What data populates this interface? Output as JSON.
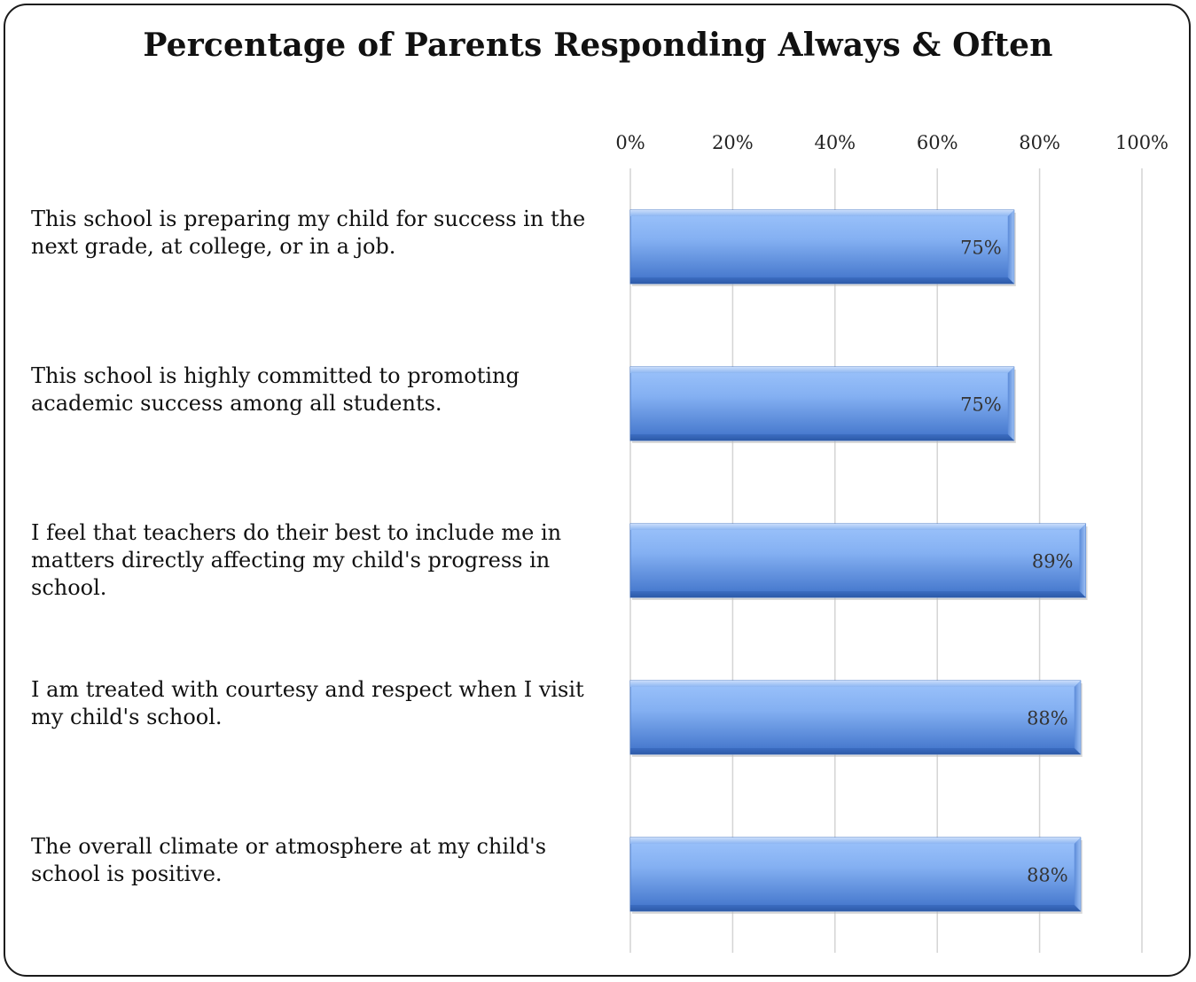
{
  "chart_data": {
    "type": "bar",
    "orientation": "horizontal",
    "title": "Percentage of Parents Responding Always & Often",
    "categories": [
      "This school is preparing my child for success in the next grade, at college, or in a job.",
      "This school is highly committed to promoting academic success among all students.",
      "I feel that teachers do their best to include me in matters directly affecting my child's progress in school.",
      "I am treated with courtesy and respect when I visit my child's school.",
      "The overall climate or atmosphere at my child's school is positive."
    ],
    "values": [
      75,
      75,
      89,
      88,
      88
    ],
    "data_labels": [
      "75%",
      "75%",
      "89%",
      "88%",
      "88%"
    ],
    "xlim": [
      0,
      100
    ],
    "x_ticks": [
      "0%",
      "20%",
      "40%",
      "60%",
      "80%",
      "100%"
    ],
    "x_axis_position": "top",
    "grid": true,
    "bar_color": "#6f9fe4"
  }
}
